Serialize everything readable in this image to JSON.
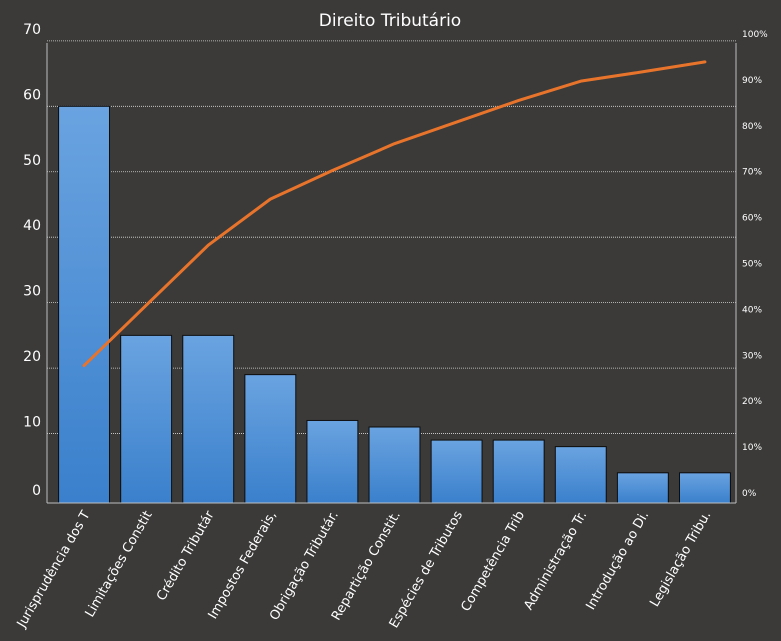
{
  "chart_data": {
    "type": "bar",
    "title": "Direito Tributário",
    "xlabel": "",
    "ylabel": "",
    "categories": [
      "Jurisprudência dos T",
      "Limitações Constit",
      "Crédito Tributár",
      "Impostos Federais,",
      "Obrigação Tributár.",
      "Repartição Constit.",
      "Espécies de Tributos",
      "Competência Trib",
      "Administração Tr.",
      "Introdução ao Di.",
      "Legislação Tribu."
    ],
    "series": [
      {
        "type": "bar",
        "values": [
          60,
          25,
          25,
          19,
          12,
          11,
          9,
          9,
          8,
          4,
          4
        ]
      },
      {
        "type": "line",
        "axis": "secondary",
        "values": [
          30.8,
          43.6,
          56.4,
          66.2,
          72.3,
          78.0,
          82.6,
          87.2,
          91.3,
          93.3,
          95.4
        ]
      }
    ],
    "ylim": [
      0,
      70
    ],
    "yticks": [
      "0",
      "10",
      "20",
      "30",
      "40",
      "50",
      "60",
      "70"
    ],
    "y2lim": [
      0,
      100
    ],
    "y2ticks": [
      "0%",
      "10%",
      "20%",
      "30%",
      "40%",
      "50%",
      "60%",
      "70%",
      "80%",
      "90%",
      "100%"
    ],
    "grid": true,
    "legend": "none",
    "colors": {
      "background": "#3b3a39",
      "bar_fill_top": "#6aa3e0",
      "bar_fill_bottom": "#3a80cc",
      "bar_stroke": "#0d0d0d",
      "line": "#e8742c",
      "grid": "#d9d9d9",
      "text": "#ffffff",
      "axis": "#bfbfbf"
    }
  }
}
